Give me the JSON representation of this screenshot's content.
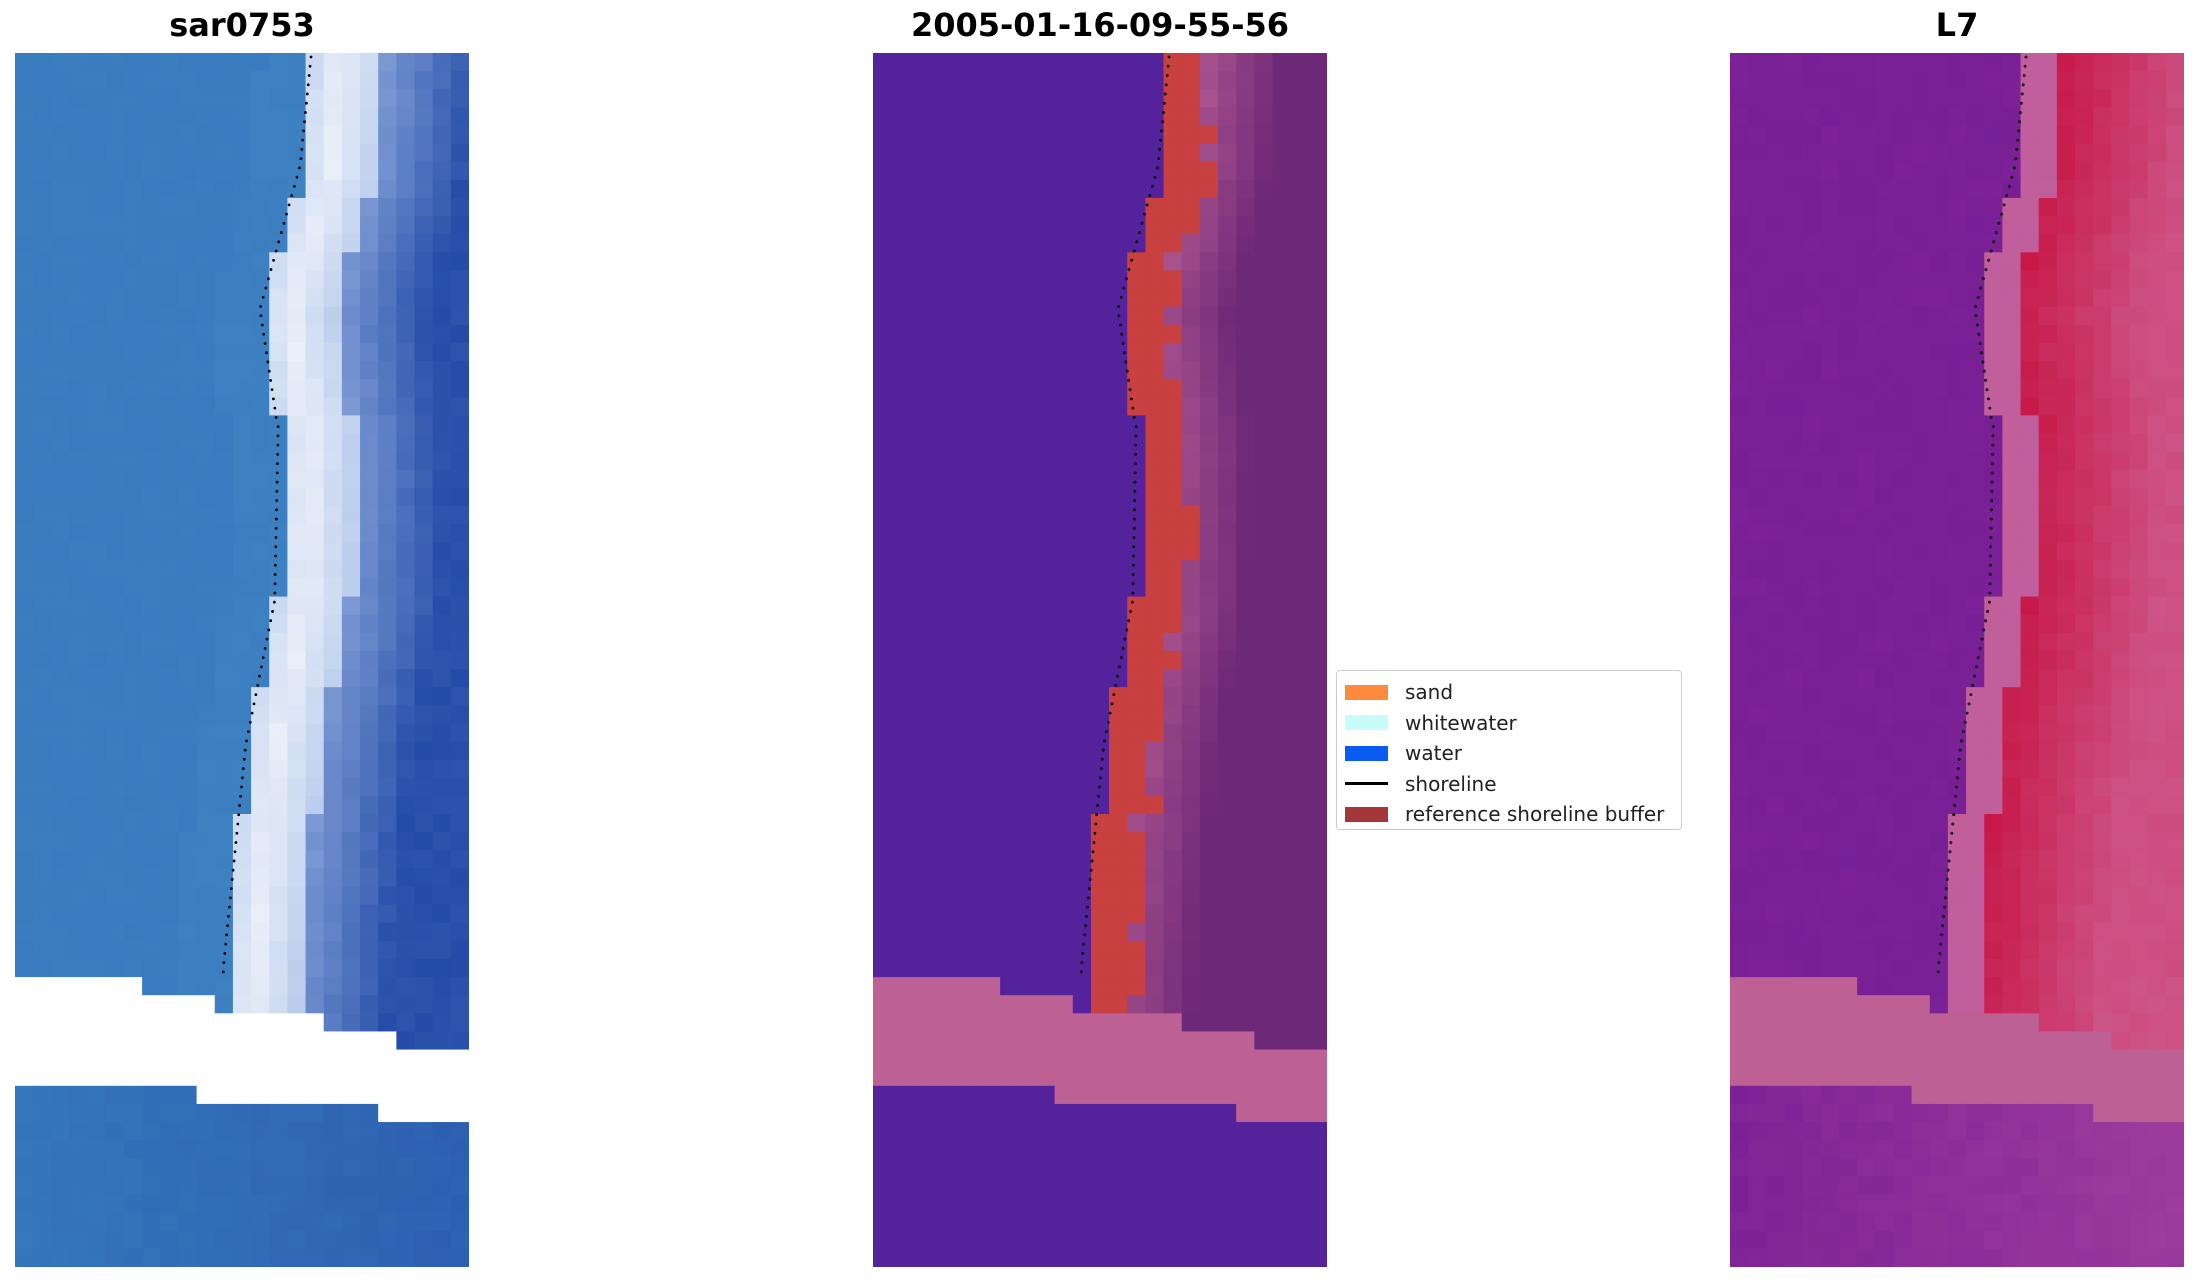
{
  "panels": [
    {
      "title": "sar0753"
    },
    {
      "title": "2005-01-16-09-55-56"
    },
    {
      "title": "L7"
    }
  ],
  "legend": {
    "items": [
      {
        "label": "sand",
        "color": "#fe8a3c",
        "kind": "patch"
      },
      {
        "label": "whitewater",
        "color": "#c8fcfb",
        "kind": "patch"
      },
      {
        "label": "water",
        "color": "#0a5bf0",
        "kind": "patch"
      },
      {
        "label": "shoreline",
        "color": "#000000",
        "kind": "line"
      },
      {
        "label": "reference shoreline buffer",
        "color": "#a33739",
        "kind": "patch"
      }
    ]
  },
  "colors": {
    "rgb_water": "#3576bb",
    "rgb_whitewater": "#e8eef8",
    "classified_water": "#54239b",
    "classified_buffer": "#c8403f",
    "classified_pink": "#bd6195",
    "index_purple": "#7f2396",
    "index_red": "#c71c4c",
    "index_pink": "#bd6195"
  }
}
